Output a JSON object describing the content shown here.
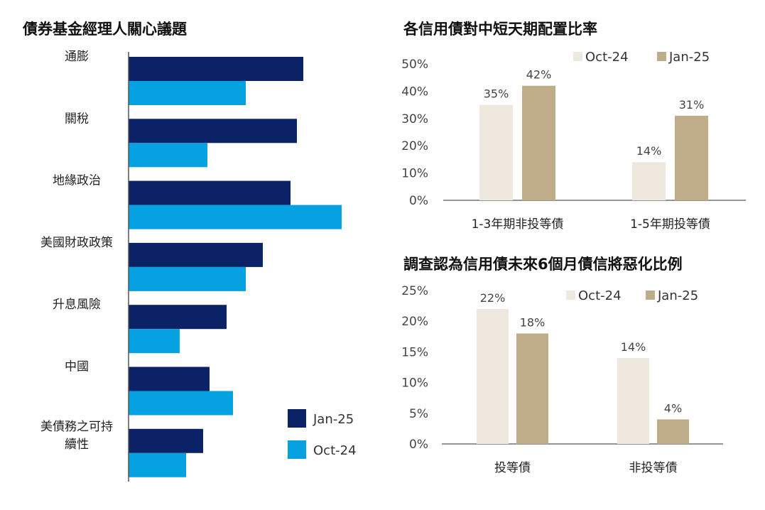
{
  "colors": {
    "jan25_left": "#0b2266",
    "oct24_left": "#06a1e0",
    "oct24_right": "#efe8de",
    "jan25_right": "#bfad8a",
    "axis": "#555555"
  },
  "chart_data": [
    {
      "type": "bar",
      "orientation": "horizontal",
      "title": "債券基金經理人關心議題",
      "categories": [
        "通膨",
        "關稅",
        "地緣政治",
        "美國財政政策",
        "升息風險",
        "中國",
        "美債務之可持續性"
      ],
      "category_lines": [
        [
          "通膨"
        ],
        [
          "關稅"
        ],
        [
          "地緣政治"
        ],
        [
          "美國財政政策"
        ],
        [
          "升息風險"
        ],
        [
          "中國"
        ],
        [
          "美債務之可持",
          "續性"
        ]
      ],
      "series": [
        {
          "name": "Jan-25",
          "values": [
            82,
            79,
            76,
            63,
            46,
            38,
            35
          ]
        },
        {
          "name": "Oct-24",
          "values": [
            55,
            37,
            100,
            55,
            24,
            49,
            27
          ]
        }
      ],
      "xlim": [
        0,
        100
      ],
      "legend": [
        "Jan-25",
        "Oct-24"
      ],
      "legend_position": "bottom-right"
    },
    {
      "type": "bar",
      "title": "各信用債對中短天期配置比率",
      "categories": [
        "1-3年期非投等債",
        "1-5年期投等債"
      ],
      "series": [
        {
          "name": "Oct-24",
          "values": [
            35,
            14
          ],
          "labels": [
            "35%",
            "14%"
          ]
        },
        {
          "name": "Jan-25",
          "values": [
            42,
            31
          ],
          "labels": [
            "42%",
            "31%"
          ]
        }
      ],
      "ylim": [
        0,
        50
      ],
      "yticks": [
        "0%",
        "10%",
        "20%",
        "30%",
        "40%",
        "50%"
      ],
      "legend": [
        "Oct-24",
        "Jan-25"
      ],
      "legend_position": "top-right"
    },
    {
      "type": "bar",
      "title": "調查認為信用債未來6個月債信將惡化比例",
      "categories": [
        "投等債",
        "非投等債"
      ],
      "series": [
        {
          "name": "Oct-24",
          "values": [
            22,
            14
          ],
          "labels": [
            "22%",
            "14%"
          ]
        },
        {
          "name": "Jan-25",
          "values": [
            18,
            4
          ],
          "labels": [
            "18%",
            "4%"
          ]
        }
      ],
      "ylim": [
        0,
        25
      ],
      "yticks": [
        "0%",
        "5%",
        "10%",
        "15%",
        "20%",
        "25%"
      ],
      "legend": [
        "Oct-24",
        "Jan-25"
      ],
      "legend_position": "top-right"
    }
  ]
}
